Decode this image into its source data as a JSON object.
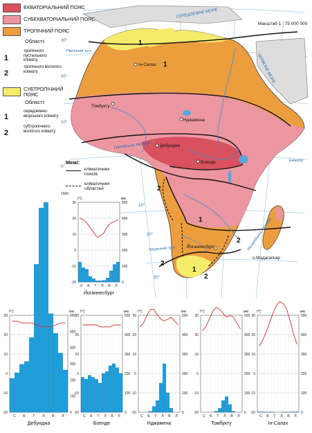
{
  "scale": "Масштаб 1 : 75 000 000",
  "legend": {
    "belts": [
      {
        "label": "ЕКВАТОРІАЛЬНИЙ ПОЯС",
        "color": "#d9505f"
      },
      {
        "label": "СУБЕКВАТОРІАЛЬНИЙ ПОЯС",
        "color": "#ec96a1"
      },
      {
        "label": "ТРОПІЧНИЙ ПОЯС",
        "color": "#ec9e3f"
      },
      {
        "label": "СУБТРОПІЧНИЙ ПОЯС",
        "color": "#f6ec6c"
      }
    ],
    "regions_title": "Області:",
    "tropical_regions": [
      {
        "num": "1",
        "label": "тропічного пустельного клімату"
      },
      {
        "num": "2",
        "label": "тропічного вологого клімату"
      }
    ],
    "subtropical_regions": [
      {
        "num": "1",
        "label": "середземно-морського клімату"
      },
      {
        "num": "2",
        "label": "субтропічного вологого клімату"
      }
    ],
    "boundaries_title": "Межі:",
    "boundaries": [
      {
        "label": "кліматичних поясів",
        "style": "solid"
      },
      {
        "label": "кліматичних областей",
        "style": "dashed"
      }
    ]
  },
  "map": {
    "place_labels": [
      "Ін-Салах",
      "Томбукту",
      "Нджамена",
      "Дебунджа",
      "Боенде",
      "Йоганнесбург",
      "о.Мадагаскар"
    ],
    "water_labels": [
      "СЕРЕДЗЕМНЕ МОРЕ",
      "ЧЕРВОНЕ МОРЕ",
      "Гвінейська затока",
      "Екватор",
      "Південний тр-к",
      "Мозамбіцька протока",
      "Північний тр-к"
    ],
    "region_numbers": [
      "1",
      "1",
      "2",
      "1",
      "2",
      "1",
      "2",
      "2"
    ],
    "degree_labels": [
      "30°",
      "20°",
      "10°",
      "0°",
      "10°",
      "20°",
      "30°"
    ]
  },
  "climatograms": [
    {
      "station": "Дебунджа",
      "units": {
        "t": "t°C",
        "p": "мм"
      },
      "months": [
        "С",
        "Б",
        "Т",
        "Л",
        "В",
        "Л"
      ],
      "temp_axis": [
        "30",
        "20",
        "10",
        "0",
        "-10",
        "-20"
      ],
      "precip_axis": [
        "1500",
        "600",
        "500",
        "400",
        "300",
        "200",
        "100",
        "0"
      ],
      "temp": [
        27,
        27,
        26,
        26,
        26,
        25,
        24,
        24,
        24,
        25,
        26,
        26
      ],
      "precip": [
        240,
        280,
        340,
        360,
        530,
        1050,
        1450,
        1490,
        700,
        560,
        420,
        300
      ]
    },
    {
      "station": "Йоганнесбург",
      "units": {
        "t": "t°C",
        "p": "мм"
      },
      "months": [
        "С",
        "Б",
        "Т",
        "Л",
        "В",
        "Л"
      ],
      "temp_axis": [
        "30",
        "20",
        "10",
        "0",
        "-10",
        "-20"
      ],
      "precip_axis": [
        "500",
        "400",
        "300",
        "200",
        "100",
        "0"
      ],
      "temp": [
        20,
        19,
        17,
        14,
        11,
        8,
        9,
        11,
        15,
        17,
        18,
        19
      ],
      "precip": [
        125,
        90,
        80,
        35,
        20,
        8,
        8,
        10,
        25,
        70,
        110,
        125
      ]
    },
    {
      "station": "Боенде",
      "units": {
        "t": "t°C",
        "p": "мм"
      },
      "months": [
        "С",
        "Б",
        "Т",
        "Л",
        "В",
        "Л"
      ],
      "temp_axis": [
        "30",
        "20",
        "10",
        "0",
        "-10",
        "-20"
      ],
      "precip_axis": [
        "500",
        "400",
        "300",
        "200",
        "100",
        "0"
      ],
      "temp": [
        25,
        25,
        25,
        25,
        25,
        24,
        24,
        24,
        24,
        25,
        25,
        25
      ],
      "precip": [
        180,
        170,
        190,
        180,
        170,
        150,
        200,
        210,
        240,
        250,
        230,
        200
      ]
    },
    {
      "station": "Нджамена",
      "units": {
        "t": "t°C",
        "p": "мм"
      },
      "months": [
        "С",
        "Б",
        "Т",
        "Л",
        "В",
        "Л"
      ],
      "temp_axis": [
        "30",
        "20",
        "10",
        "0",
        "-10",
        "-20"
      ],
      "precip_axis": [
        "500",
        "400",
        "300",
        "200",
        "100",
        "0"
      ],
      "temp": [
        24,
        26,
        30,
        33,
        33,
        30,
        28,
        27,
        28,
        29,
        27,
        25
      ],
      "precip": [
        0,
        0,
        0,
        5,
        30,
        60,
        150,
        250,
        100,
        20,
        0,
        0
      ]
    },
    {
      "station": "Томбукту",
      "units": {
        "t": "t°C",
        "p": "мм"
      },
      "months": [
        "С",
        "Б",
        "Т",
        "Л",
        "В",
        "Л"
      ],
      "temp_axis": [
        "30",
        "20",
        "10",
        "0",
        "-10",
        "-20"
      ],
      "precip_axis": [
        "500",
        "400",
        "300",
        "200",
        "100",
        "0"
      ],
      "temp": [
        22,
        24,
        28,
        32,
        34,
        33,
        31,
        29,
        30,
        29,
        26,
        23
      ],
      "precip": [
        0,
        0,
        0,
        0,
        5,
        20,
        60,
        80,
        40,
        5,
        0,
        0
      ]
    },
    {
      "station": "Ін-Салах",
      "units": {
        "t": "t°C",
        "p": "мм"
      },
      "months": [
        "С",
        "Б",
        "Т",
        "Л",
        "В",
        "Л"
      ],
      "temp_axis": [
        "30",
        "20",
        "10",
        "0",
        "-10",
        "-20"
      ],
      "precip_axis": [
        "500",
        "400",
        "300",
        "200",
        "100",
        "0"
      ],
      "temp": [
        14,
        17,
        21,
        26,
        31,
        35,
        37,
        36,
        33,
        27,
        20,
        15
      ],
      "precip": [
        2,
        2,
        1,
        1,
        1,
        0,
        0,
        1,
        1,
        1,
        2,
        2
      ]
    }
  ]
}
